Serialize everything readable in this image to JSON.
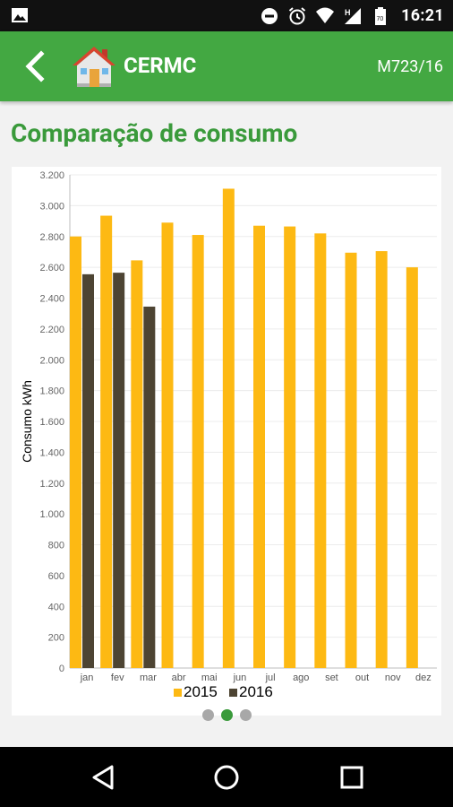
{
  "status_bar": {
    "time": "16:21",
    "left_icon": "image-icon",
    "right_icons": [
      "do-not-disturb-icon",
      "alarm-icon",
      "wifi-icon",
      "signal-h-icon",
      "battery-icon"
    ]
  },
  "app_bar": {
    "title": "CERMC",
    "code": "M723/16",
    "back_icon": "chevron-left-icon",
    "logo_icon": "house-icon"
  },
  "page": {
    "title": "Comparação de consumo"
  },
  "pager": {
    "count": 3,
    "active_index": 1
  },
  "nav": {
    "icons": [
      "back-triangle-icon",
      "home-circle-icon",
      "recents-square-icon"
    ]
  },
  "colors": {
    "app_bar": "#43a842",
    "title_green": "#3a9a3b",
    "series_2015": "#fdb913",
    "series_2016": "#4d4433"
  },
  "chart_data": {
    "type": "bar",
    "ylabel": "Consumo kWh",
    "ylim": [
      0,
      3200
    ],
    "yticks": [
      0,
      200,
      400,
      600,
      800,
      1000,
      1200,
      1400,
      1600,
      1800,
      2000,
      2200,
      2400,
      2600,
      2800,
      3000,
      3200
    ],
    "ytick_labels": [
      "0",
      "200",
      "400",
      "600",
      "800",
      "1.000",
      "1.200",
      "1.400",
      "1.600",
      "1.800",
      "2.000",
      "2.200",
      "2.400",
      "2.600",
      "2.800",
      "3.000",
      "3.200"
    ],
    "categories": [
      "jan",
      "fev",
      "mar",
      "abr",
      "mai",
      "jun",
      "jul",
      "ago",
      "set",
      "out",
      "nov",
      "dez"
    ],
    "series": [
      {
        "name": "2015",
        "color": "#fdb913",
        "values": [
          2800,
          2935,
          2645,
          2890,
          2810,
          3110,
          2870,
          2865,
          2820,
          2695,
          2705,
          2600
        ]
      },
      {
        "name": "2016",
        "color": "#4d4433",
        "values": [
          2555,
          2565,
          2345,
          null,
          null,
          null,
          null,
          null,
          null,
          null,
          null,
          null
        ]
      }
    ],
    "legend": "bottom-center",
    "grid": true
  }
}
